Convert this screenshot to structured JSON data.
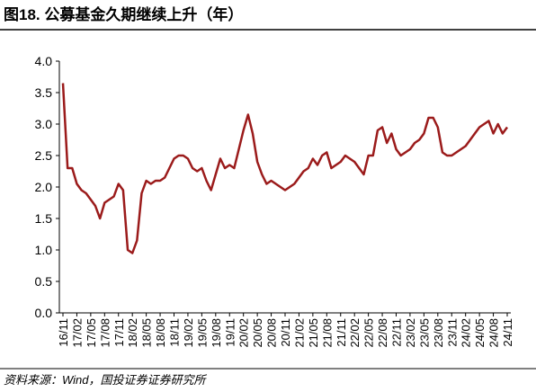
{
  "chart_data": {
    "type": "line",
    "title": "图18. 公募基金久期继续上升（年）",
    "source": "资料来源：Wind，国投证券证券研究所",
    "categories": [
      "16/11",
      null,
      null,
      "17/02",
      null,
      null,
      "17/05",
      null,
      null,
      "17/08",
      null,
      null,
      "17/11",
      null,
      null,
      "18/02",
      null,
      null,
      "18/05",
      null,
      null,
      "18/08",
      null,
      null,
      "18/11",
      null,
      null,
      "19/02",
      null,
      null,
      "19/05",
      null,
      null,
      "19/08",
      null,
      null,
      "19/11",
      null,
      null,
      "20/02",
      null,
      null,
      "20/05",
      null,
      null,
      "20/08",
      null,
      null,
      "20/11",
      null,
      null,
      "21/02",
      null,
      null,
      "21/05",
      null,
      null,
      "21/08",
      null,
      null,
      "21/11",
      null,
      null,
      "22/02",
      null,
      null,
      "22/05",
      null,
      null,
      "22/08",
      null,
      null,
      "22/11",
      null,
      null,
      "23/02",
      null,
      null,
      "23/05",
      null,
      null,
      "23/08",
      null,
      null,
      "23/11",
      null,
      null,
      "24/02",
      null,
      null,
      "24/05",
      null,
      null,
      "24/08",
      null,
      null,
      "24/11"
    ],
    "series": [
      {
        "color": "#9b1b1b",
        "values": [
          3.65,
          2.3,
          2.3,
          2.05,
          1.95,
          1.9,
          1.8,
          1.7,
          1.5,
          1.75,
          1.8,
          1.85,
          2.05,
          1.95,
          1.0,
          0.95,
          1.15,
          1.9,
          2.1,
          2.05,
          2.1,
          2.1,
          2.15,
          2.3,
          2.45,
          2.5,
          2.5,
          2.45,
          2.3,
          2.25,
          2.3,
          2.1,
          1.95,
          2.2,
          2.45,
          2.3,
          2.35,
          2.3,
          2.6,
          2.9,
          3.15,
          2.85,
          2.4,
          2.2,
          2.05,
          2.1,
          2.05,
          2.0,
          1.95,
          2.0,
          2.05,
          2.15,
          2.25,
          2.3,
          2.45,
          2.35,
          2.5,
          2.55,
          2.3,
          2.35,
          2.4,
          2.5,
          2.45,
          2.4,
          2.3,
          2.2,
          2.5,
          2.5,
          2.9,
          2.95,
          2.7,
          2.85,
          2.6,
          2.5,
          2.55,
          2.6,
          2.7,
          2.75,
          2.85,
          3.1,
          3.1,
          2.95,
          2.55,
          2.5,
          2.5,
          2.55,
          2.6,
          2.65,
          2.75,
          2.85,
          2.95,
          3.0,
          3.05,
          2.85,
          3.0,
          2.85,
          2.95
        ]
      }
    ],
    "ylim": [
      0,
      4
    ],
    "yticks": [
      {
        "value": 0,
        "label": "0.0"
      },
      0.5,
      {
        "value": 1,
        "label": "1.0"
      },
      1.5,
      {
        "value": 2,
        "label": "2.0"
      },
      2.5,
      {
        "value": 3,
        "label": "3.0"
      },
      3.5,
      {
        "value": 4,
        "label": "4.0"
      }
    ]
  }
}
